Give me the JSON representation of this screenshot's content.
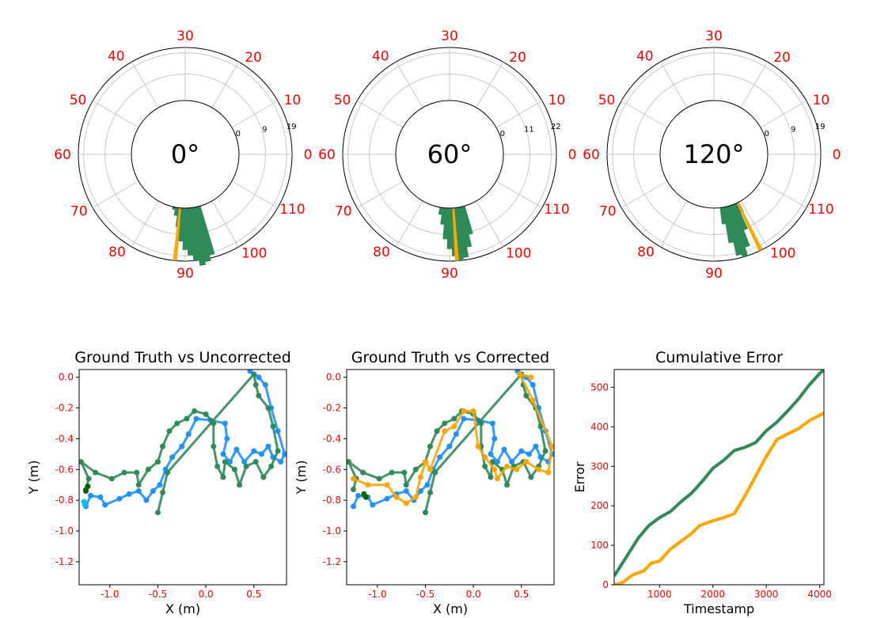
{
  "chart_data": [
    {
      "type": "polar-histogram",
      "title": "0°",
      "angle_labels": [
        "0",
        "10",
        "20",
        "30",
        "40",
        "50",
        "60",
        "70",
        "80",
        "90",
        "100",
        "110"
      ],
      "radial_ticks": [
        "0",
        "9",
        "19"
      ],
      "rmax": 19,
      "bars": [
        [
          75,
          18
        ],
        [
          78,
          20
        ],
        [
          81,
          21
        ],
        [
          84,
          19
        ],
        [
          87,
          17
        ],
        [
          90,
          15
        ],
        [
          93,
          12
        ],
        [
          96,
          7
        ],
        [
          99,
          3
        ],
        [
          102,
          1
        ]
      ],
      "marker_angle": 95.5,
      "colors": {
        "bars": "#2e8b57",
        "marker": "#ffa500",
        "labels": "#ff0000"
      }
    },
    {
      "type": "polar-histogram",
      "title": "60°",
      "angle_labels": [
        "0",
        "10",
        "20",
        "30",
        "40",
        "50",
        "60",
        "70",
        "80",
        "90",
        "100",
        "110"
      ],
      "radial_ticks": [
        "0",
        "11",
        "22"
      ],
      "rmax": 22,
      "bars": [
        [
          75,
          12
        ],
        [
          78,
          17
        ],
        [
          81,
          21
        ],
        [
          84,
          22
        ],
        [
          87,
          20
        ],
        [
          90,
          17
        ],
        [
          93,
          13
        ],
        [
          96,
          7
        ],
        [
          99,
          3
        ]
      ],
      "marker_angle": 86,
      "colors": {
        "bars": "#2e8b57",
        "marker": "#ffa500",
        "labels": "#ff0000"
      }
    },
    {
      "type": "polar-histogram",
      "title": "120°",
      "angle_labels": [
        "0",
        "10",
        "20",
        "30",
        "40",
        "50",
        "60",
        "70",
        "80",
        "90",
        "100",
        "110"
      ],
      "radial_ticks": [
        "0",
        "9",
        "19"
      ],
      "rmax": 19,
      "bars": [
        [
          64,
          4
        ],
        [
          67,
          10
        ],
        [
          70,
          16
        ],
        [
          73,
          19
        ],
        [
          76,
          18
        ],
        [
          79,
          13
        ],
        [
          82,
          6
        ]
      ],
      "marker_angle": 64,
      "colors": {
        "bars": "#2e8b57",
        "marker": "#ffa500",
        "labels": "#ff0000"
      }
    },
    {
      "type": "scatter",
      "title": "Ground Truth vs Uncorrected",
      "xlabel": "X (m)",
      "ylabel": "Y (m)",
      "xlim": [
        -1.32,
        0.84
      ],
      "ylim": [
        -1.35,
        0.05
      ],
      "xticks": [
        "-1.0",
        "-0.5",
        "0.0",
        "0.5"
      ],
      "yticks": [
        "0.0",
        "-0.2",
        "-0.4",
        "-0.6",
        "-0.8",
        "-1.0",
        "-1.2"
      ],
      "series": [
        {
          "color": "#1e90ff",
          "points": [
            [
              -1.25,
              -0.84
            ],
            [
              -1.2,
              -0.77
            ],
            [
              -1.1,
              -0.78
            ],
            [
              -1.05,
              -0.83
            ],
            [
              -0.9,
              -0.79
            ],
            [
              -0.8,
              -0.76
            ],
            [
              -0.7,
              -0.74
            ],
            [
              -0.62,
              -0.8
            ],
            [
              -0.55,
              -0.74
            ],
            [
              -0.48,
              -0.7
            ],
            [
              -0.42,
              -0.6
            ],
            [
              -0.35,
              -0.52
            ],
            [
              -0.25,
              -0.45
            ],
            [
              -0.18,
              -0.37
            ],
            [
              -0.1,
              -0.27
            ],
            [
              0.05,
              -0.28
            ],
            [
              0.2,
              -0.3
            ],
            [
              0.22,
              -0.4
            ],
            [
              0.18,
              -0.5
            ],
            [
              0.25,
              -0.55
            ],
            [
              0.32,
              -0.47
            ],
            [
              0.4,
              -0.55
            ],
            [
              0.5,
              -0.48
            ],
            [
              0.58,
              -0.5
            ],
            [
              0.65,
              -0.45
            ],
            [
              0.7,
              -0.52
            ],
            [
              0.78,
              -0.55
            ],
            [
              0.82,
              -0.5
            ],
            [
              0.75,
              -0.35
            ],
            [
              0.68,
              -0.2
            ],
            [
              0.62,
              -0.05
            ],
            [
              0.55,
              0.0
            ],
            [
              0.46,
              0.04
            ]
          ]
        },
        {
          "color": "#2e8b57",
          "points": [
            [
              -1.25,
              -0.73
            ],
            [
              -1.22,
              -0.66
            ],
            [
              -1.3,
              -0.55
            ],
            [
              -1.15,
              -0.62
            ],
            [
              -0.98,
              -0.66
            ],
            [
              -0.85,
              -0.62
            ],
            [
              -0.72,
              -0.62
            ],
            [
              -0.7,
              -0.7
            ],
            [
              -0.6,
              -0.6
            ],
            [
              -0.5,
              -0.55
            ],
            [
              -0.45,
              -0.45
            ],
            [
              -0.38,
              -0.35
            ],
            [
              -0.3,
              -0.3
            ],
            [
              -0.2,
              -0.27
            ],
            [
              -0.12,
              -0.22
            ],
            [
              0.0,
              -0.24
            ],
            [
              0.08,
              -0.3
            ],
            [
              0.08,
              -0.45
            ],
            [
              0.12,
              -0.58
            ],
            [
              0.18,
              -0.65
            ],
            [
              0.2,
              -0.55
            ],
            [
              0.3,
              -0.6
            ],
            [
              0.35,
              -0.7
            ],
            [
              0.42,
              -0.58
            ],
            [
              0.52,
              -0.55
            ],
            [
              0.6,
              -0.65
            ],
            [
              0.68,
              -0.58
            ],
            [
              0.75,
              -0.48
            ],
            [
              0.7,
              -0.32
            ],
            [
              0.65,
              -0.2
            ],
            [
              0.55,
              -0.12
            ],
            [
              0.52,
              -0.05
            ],
            [
              0.5,
              0.02
            ],
            [
              -0.4,
              -0.62
            ],
            [
              -0.45,
              -0.75
            ],
            [
              -0.5,
              -0.88
            ]
          ]
        },
        {
          "color": "#006400",
          "points": [
            [
              -1.25,
              -0.74
            ],
            [
              -1.23,
              -0.71
            ]
          ]
        },
        {
          "color": "#00bfff",
          "points": [
            [
              -1.26,
              -0.83
            ],
            [
              -1.27,
              -0.81
            ]
          ]
        }
      ]
    },
    {
      "type": "scatter",
      "title": "Ground Truth vs Corrected",
      "xlabel": "X (m)",
      "ylabel": "Y (m)",
      "xlim": [
        -1.32,
        0.84
      ],
      "ylim": [
        -1.35,
        0.05
      ],
      "xticks": [
        "-1.0",
        "-0.5",
        "0.0",
        "0.5"
      ],
      "yticks": [
        "0.0",
        "-0.2",
        "-0.4",
        "-0.6",
        "-0.8",
        "-1.0",
        "-1.2"
      ],
      "series": [
        {
          "color": "#1e90ff",
          "points": [
            [
              -1.25,
              -0.84
            ],
            [
              -1.2,
              -0.77
            ],
            [
              -1.1,
              -0.78
            ],
            [
              -1.05,
              -0.83
            ],
            [
              -0.9,
              -0.79
            ],
            [
              -0.8,
              -0.76
            ],
            [
              -0.7,
              -0.74
            ],
            [
              -0.62,
              -0.8
            ],
            [
              -0.55,
              -0.74
            ],
            [
              -0.48,
              -0.7
            ],
            [
              -0.42,
              -0.6
            ],
            [
              -0.35,
              -0.52
            ],
            [
              -0.25,
              -0.45
            ],
            [
              -0.18,
              -0.37
            ],
            [
              -0.1,
              -0.27
            ],
            [
              0.05,
              -0.28
            ],
            [
              0.2,
              -0.3
            ],
            [
              0.22,
              -0.4
            ],
            [
              0.18,
              -0.5
            ],
            [
              0.25,
              -0.55
            ],
            [
              0.32,
              -0.47
            ],
            [
              0.4,
              -0.55
            ],
            [
              0.5,
              -0.48
            ],
            [
              0.58,
              -0.5
            ],
            [
              0.65,
              -0.45
            ],
            [
              0.7,
              -0.52
            ],
            [
              0.78,
              -0.55
            ],
            [
              0.82,
              -0.5
            ],
            [
              0.75,
              -0.35
            ],
            [
              0.68,
              -0.2
            ],
            [
              0.62,
              -0.05
            ],
            [
              0.55,
              0.0
            ],
            [
              0.46,
              0.04
            ]
          ]
        },
        {
          "color": "#2e8b57",
          "points": [
            [
              -1.25,
              -0.73
            ],
            [
              -1.22,
              -0.66
            ],
            [
              -1.3,
              -0.55
            ],
            [
              -1.15,
              -0.62
            ],
            [
              -0.98,
              -0.66
            ],
            [
              -0.85,
              -0.62
            ],
            [
              -0.72,
              -0.62
            ],
            [
              -0.7,
              -0.7
            ],
            [
              -0.6,
              -0.6
            ],
            [
              -0.5,
              -0.55
            ],
            [
              -0.45,
              -0.45
            ],
            [
              -0.38,
              -0.35
            ],
            [
              -0.3,
              -0.3
            ],
            [
              -0.2,
              -0.27
            ],
            [
              -0.12,
              -0.22
            ],
            [
              0.0,
              -0.24
            ],
            [
              0.08,
              -0.3
            ],
            [
              0.08,
              -0.45
            ],
            [
              0.12,
              -0.58
            ],
            [
              0.18,
              -0.65
            ],
            [
              0.2,
              -0.55
            ],
            [
              0.3,
              -0.6
            ],
            [
              0.35,
              -0.7
            ],
            [
              0.42,
              -0.58
            ],
            [
              0.52,
              -0.55
            ],
            [
              0.6,
              -0.65
            ],
            [
              0.68,
              -0.58
            ],
            [
              0.75,
              -0.48
            ],
            [
              0.7,
              -0.32
            ],
            [
              0.65,
              -0.2
            ],
            [
              0.55,
              -0.12
            ],
            [
              0.52,
              -0.05
            ],
            [
              0.5,
              0.02
            ],
            [
              -0.4,
              -0.62
            ],
            [
              -0.45,
              -0.75
            ],
            [
              -0.5,
              -0.88
            ]
          ]
        },
        {
          "color": "#ffa500",
          "points": [
            [
              -1.25,
              -0.66
            ],
            [
              -1.1,
              -0.7
            ],
            [
              -0.9,
              -0.7
            ],
            [
              -0.8,
              -0.78
            ],
            [
              -0.7,
              -0.82
            ],
            [
              -0.6,
              -0.78
            ],
            [
              -0.55,
              -0.65
            ],
            [
              -0.5,
              -0.55
            ],
            [
              -0.45,
              -0.6
            ],
            [
              -0.3,
              -0.35
            ],
            [
              -0.2,
              -0.32
            ],
            [
              -0.1,
              -0.22
            ],
            [
              0.0,
              -0.22
            ],
            [
              0.05,
              -0.45
            ],
            [
              0.12,
              -0.52
            ],
            [
              0.22,
              -0.6
            ],
            [
              0.25,
              -0.66
            ],
            [
              0.35,
              -0.58
            ],
            [
              0.45,
              -0.6
            ],
            [
              0.55,
              -0.55
            ],
            [
              0.68,
              -0.6
            ],
            [
              0.78,
              -0.62
            ],
            [
              0.82,
              -0.45
            ],
            [
              0.62,
              -0.15
            ],
            [
              0.48,
              0.02
            ],
            [
              0.6,
              0.0
            ]
          ]
        },
        {
          "color": "#006400",
          "points": [
            [
              -1.14,
              -0.76
            ],
            [
              -1.12,
              -0.78
            ]
          ]
        }
      ]
    },
    {
      "type": "line",
      "title": "Cumulative Error",
      "xlabel": "Timestamp",
      "ylabel": "Error",
      "xlim": [
        150,
        4080
      ],
      "ylim": [
        0,
        545
      ],
      "xticks": [
        "1000",
        "2000",
        "3000",
        "4000"
      ],
      "yticks": [
        "0",
        "100",
        "200",
        "300",
        "400",
        "500"
      ],
      "series": [
        {
          "color": "#2e8b57",
          "points": [
            [
              150,
              22
            ],
            [
              400,
              75
            ],
            [
              600,
              118
            ],
            [
              800,
              150
            ],
            [
              1000,
              170
            ],
            [
              1200,
              185
            ],
            [
              1400,
              210
            ],
            [
              1600,
              232
            ],
            [
              1800,
              262
            ],
            [
              2000,
              295
            ],
            [
              2200,
              315
            ],
            [
              2400,
              340
            ],
            [
              2600,
              348
            ],
            [
              2800,
              360
            ],
            [
              3000,
              390
            ],
            [
              3200,
              412
            ],
            [
              3400,
              440
            ],
            [
              3600,
              470
            ],
            [
              3800,
              505
            ],
            [
              4000,
              535
            ],
            [
              4080,
              545
            ]
          ]
        },
        {
          "color": "#ffa500",
          "points": [
            [
              150,
              0
            ],
            [
              300,
              5
            ],
            [
              500,
              25
            ],
            [
              700,
              35
            ],
            [
              850,
              55
            ],
            [
              1000,
              60
            ],
            [
              1200,
              90
            ],
            [
              1400,
              110
            ],
            [
              1600,
              130
            ],
            [
              1750,
              150
            ],
            [
              2000,
              162
            ],
            [
              2200,
              170
            ],
            [
              2400,
              180
            ],
            [
              2600,
              225
            ],
            [
              2800,
              275
            ],
            [
              3000,
              325
            ],
            [
              3200,
              368
            ],
            [
              3400,
              382
            ],
            [
              3600,
              395
            ],
            [
              3800,
              415
            ],
            [
              4080,
              435
            ]
          ]
        }
      ]
    }
  ]
}
